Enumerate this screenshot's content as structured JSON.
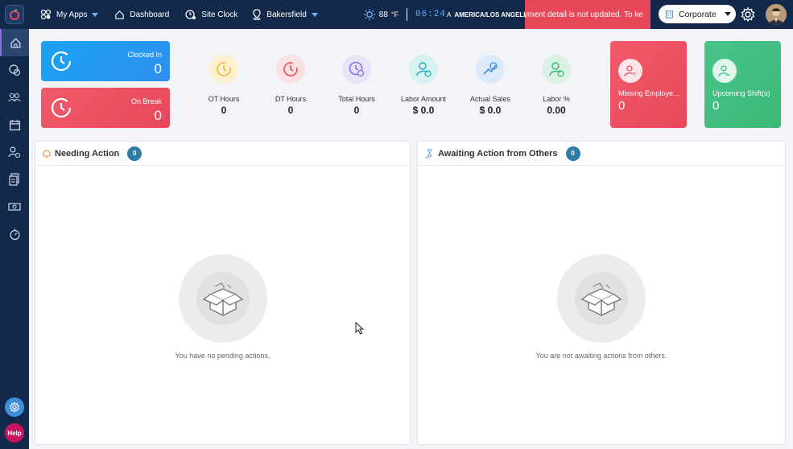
{
  "topbar": {
    "my_apps": "My Apps",
    "dashboard": "Dashboard",
    "site_clock": "Site Clock",
    "location": "Bakersfield",
    "temperature": "88",
    "temp_unit": "°F",
    "time": "06:24",
    "time_suffix": "A",
    "timezone": "AMERICA/LOS ANGELES",
    "alert_text": "yment detail is not updated. To ke",
    "org_selector": "Corporate"
  },
  "sidebar": {
    "items": [
      "home-icon",
      "dollar-cycle-icon",
      "people-icon",
      "calendar-icon",
      "user-gear-icon",
      "documents-icon",
      "cash-icon",
      "timer-icon"
    ],
    "help": "Help"
  },
  "cards": {
    "clocked_in": {
      "label": "Clocked In",
      "value": "0"
    },
    "on_break": {
      "label": "On Break",
      "value": "0"
    },
    "missing": {
      "label": "Missing Employe...",
      "value": "0"
    },
    "upcoming": {
      "label": "Upcoming Shift(s)",
      "value": "0"
    }
  },
  "metrics": [
    {
      "label": "OT Hours",
      "value": "0"
    },
    {
      "label": "DT Hours",
      "value": "0"
    },
    {
      "label": "Total Hours",
      "value": "0"
    },
    {
      "label": "Labor Amount",
      "value": "$ 0.0"
    },
    {
      "label": "Actual Sales",
      "value": "$ 0.0"
    },
    {
      "label": "Labor %",
      "value": "0.00"
    }
  ],
  "panels": {
    "needing_action": {
      "title": "Needing Action",
      "count": "0",
      "empty_text": "You have no pending actions."
    },
    "awaiting_action": {
      "title": "Awaiting Action from Others",
      "count": "0",
      "empty_text": "You are not awaiting actions from others."
    }
  },
  "colors": {
    "nav_bg": "#13294b",
    "blue_card": "#2f8ff0",
    "red_card": "#e8475a",
    "green_card": "#3cb878",
    "badge": "#2e7ca8"
  }
}
